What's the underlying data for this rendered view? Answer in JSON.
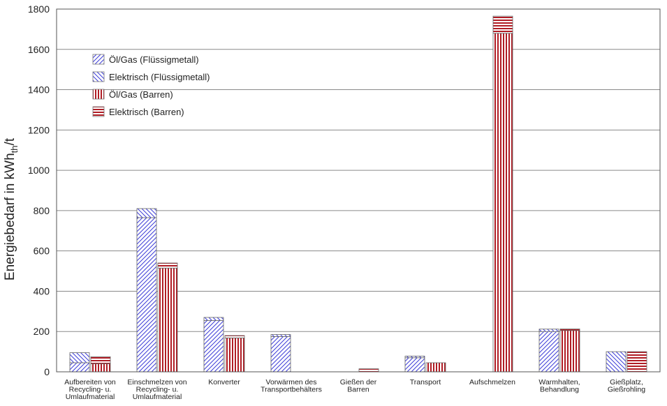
{
  "chart_data": {
    "type": "bar",
    "stacked": true,
    "categories": [
      [
        "Aufbereiten von",
        "Recycling- u.",
        "Umlaufmaterial"
      ],
      [
        "Einschmelzen von",
        "Recycling- u.",
        "Umlaufmaterial"
      ],
      [
        "Konverter"
      ],
      [
        "Vorwärmen des",
        "Transportbehälters"
      ],
      [
        "Gießen der",
        "Barren"
      ],
      [
        "Transport"
      ],
      [
        "Aufschmelzen"
      ],
      [
        "Warmhalten,",
        "Behandlung"
      ],
      [
        "Gießplatz,",
        "Gießrohling"
      ]
    ],
    "series": [
      {
        "name": "Öl/Gas (Flüssigmetall)",
        "group": "Flüssigmetall",
        "pattern": "diag-right",
        "color": "#4a4adf",
        "values": [
          45,
          765,
          255,
          175,
          0,
          70,
          0,
          200,
          0
        ]
      },
      {
        "name": "Elektrisch (Flüssigmetall)",
        "group": "Flüssigmetall",
        "pattern": "diag-left",
        "color": "#4a4adf",
        "values": [
          50,
          45,
          15,
          10,
          0,
          8,
          0,
          12,
          100
        ]
      },
      {
        "name": "Öl/Gas (Barren)",
        "group": "Barren",
        "pattern": "vertical",
        "color": "#b02028",
        "values": [
          40,
          515,
          168,
          0,
          0,
          45,
          1680,
          205,
          0
        ]
      },
      {
        "name": "Elektrisch (Barren)",
        "group": "Barren",
        "pattern": "horizontal",
        "color": "#b02028",
        "values": [
          35,
          25,
          12,
          0,
          15,
          0,
          85,
          8,
          100
        ]
      }
    ],
    "ylabel_main": "Energiebedarf in kWh",
    "ylabel_sub": "th",
    "ylabel_tail": "/t",
    "xlabel": "",
    "ylim": [
      0,
      1800
    ],
    "yticks": [
      0,
      200,
      400,
      600,
      800,
      1000,
      1200,
      1400,
      1600,
      1800
    ],
    "grid": true,
    "legend": "top-left"
  }
}
